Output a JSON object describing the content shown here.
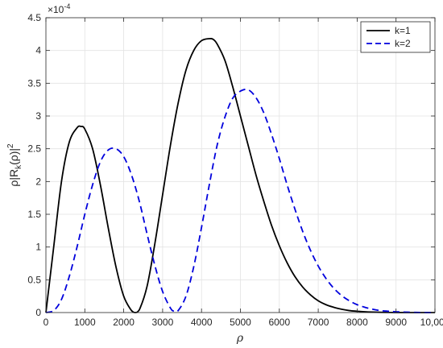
{
  "chart_data": {
    "type": "line",
    "xlabel": "ρ",
    "ylabel_parts": [
      "ρ|R",
      "k",
      "(ρ)|",
      "2"
    ],
    "y_exponent_label": "×10",
    "y_exponent_power": "-4",
    "xlim": [
      0,
      10000
    ],
    "ylim": [
      0,
      4.5
    ],
    "x_ticks": [
      0,
      1000,
      2000,
      3000,
      4000,
      5000,
      6000,
      7000,
      8000,
      9000,
      10000
    ],
    "x_tick_labels": [
      "0",
      "1000",
      "2000",
      "3000",
      "4000",
      "5000",
      "6000",
      "7000",
      "8000",
      "9000",
      "10,000"
    ],
    "y_ticks": [
      0,
      0.5,
      1,
      1.5,
      2,
      2.5,
      3,
      3.5,
      4,
      4.5
    ],
    "y_tick_labels": [
      "0",
      "0.5",
      "1",
      "1.5",
      "2",
      "2.5",
      "3",
      "3.5",
      "4",
      "4.5"
    ],
    "grid": true,
    "legend_position": "top-right",
    "series": [
      {
        "name": "k=1",
        "color": "#000000",
        "style": "solid",
        "x": [
          0,
          200,
          400,
          600,
          800,
          900,
          1000,
          1200,
          1400,
          1600,
          1800,
          2000,
          2200,
          2300,
          2400,
          2600,
          2800,
          3000,
          3200,
          3400,
          3600,
          3800,
          4000,
          4200,
          4300,
          4400,
          4600,
          4800,
          5000,
          5200,
          5400,
          5600,
          5800,
          6000,
          6200,
          6400,
          6600,
          6800,
          7000,
          7200,
          7400,
          7600,
          7800,
          8000,
          8200,
          8400,
          8600,
          8800,
          9000,
          9500,
          10000
        ],
        "y": [
          0,
          1.0,
          2.0,
          2.6,
          2.82,
          2.84,
          2.8,
          2.5,
          1.95,
          1.3,
          0.7,
          0.25,
          0.03,
          0.0,
          0.04,
          0.4,
          1.05,
          1.8,
          2.55,
          3.2,
          3.7,
          4.0,
          4.15,
          4.18,
          4.17,
          4.1,
          3.85,
          3.45,
          3.0,
          2.55,
          2.1,
          1.7,
          1.33,
          1.02,
          0.76,
          0.55,
          0.39,
          0.27,
          0.18,
          0.12,
          0.08,
          0.05,
          0.03,
          0.02,
          0.012,
          0.007,
          0.004,
          0.002,
          0.001,
          0.0,
          0.0
        ]
      },
      {
        "name": "k=2",
        "color": "#0000dd",
        "style": "dashed",
        "x": [
          0,
          200,
          400,
          600,
          800,
          1000,
          1200,
          1400,
          1600,
          1800,
          2000,
          2200,
          2400,
          2600,
          2800,
          3000,
          3200,
          3300,
          3400,
          3600,
          3800,
          4000,
          4200,
          4400,
          4600,
          4800,
          5000,
          5200,
          5400,
          5600,
          5800,
          6000,
          6200,
          6400,
          6600,
          6800,
          7000,
          7200,
          7400,
          7600,
          7800,
          8000,
          8200,
          8400,
          8600,
          8800,
          9000,
          9500,
          10000
        ],
        "y": [
          0,
          0.03,
          0.2,
          0.55,
          1.0,
          1.5,
          1.95,
          2.3,
          2.48,
          2.5,
          2.38,
          2.1,
          1.7,
          1.2,
          0.72,
          0.32,
          0.07,
          0.02,
          0.03,
          0.25,
          0.7,
          1.3,
          1.95,
          2.55,
          2.98,
          3.27,
          3.38,
          3.4,
          3.28,
          3.05,
          2.72,
          2.35,
          1.95,
          1.58,
          1.24,
          0.95,
          0.71,
          0.52,
          0.37,
          0.26,
          0.18,
          0.12,
          0.08,
          0.05,
          0.03,
          0.02,
          0.012,
          0.003,
          0.0
        ]
      }
    ]
  }
}
